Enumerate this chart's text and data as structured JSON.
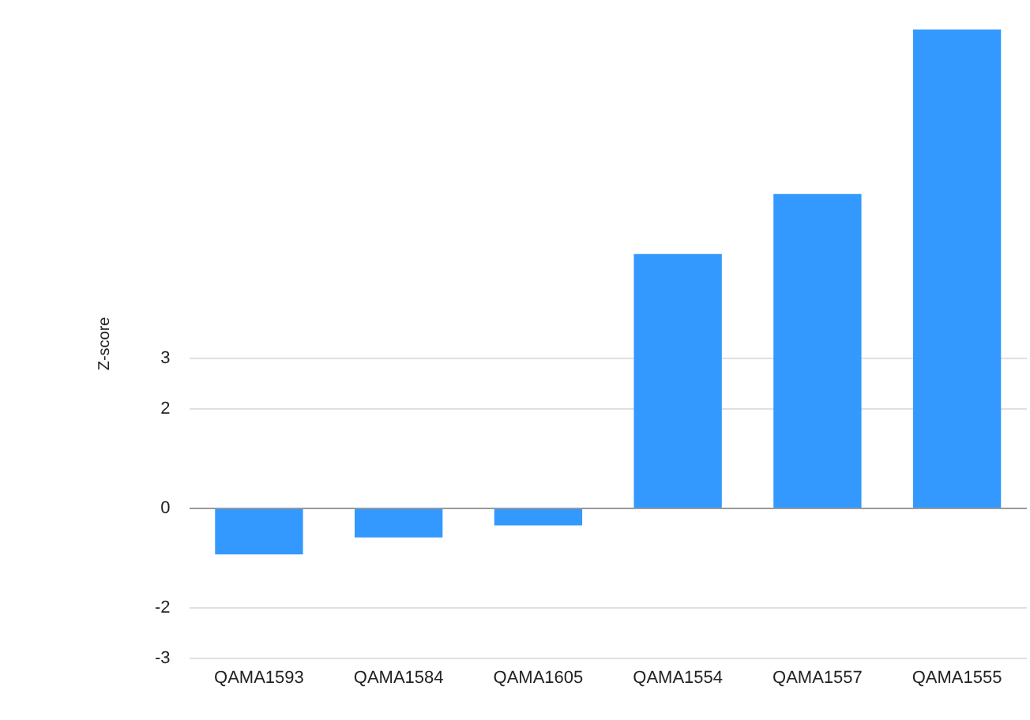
{
  "chart_data": {
    "type": "bar",
    "ylabel": "Z-score",
    "categories": [
      "QAMA1593",
      "QAMA1584",
      "QAMA1605",
      "QAMA1554",
      "QAMA1557",
      "QAMA1555"
    ],
    "values": [
      -0.92,
      -0.58,
      -0.34,
      5.1,
      6.3,
      9.6
    ],
    "color": "#3399ff",
    "ylim": [
      -3,
      9.6
    ],
    "yticks": [
      -3,
      -2,
      0,
      2,
      3
    ],
    "grid": "y",
    "legend": false
  }
}
